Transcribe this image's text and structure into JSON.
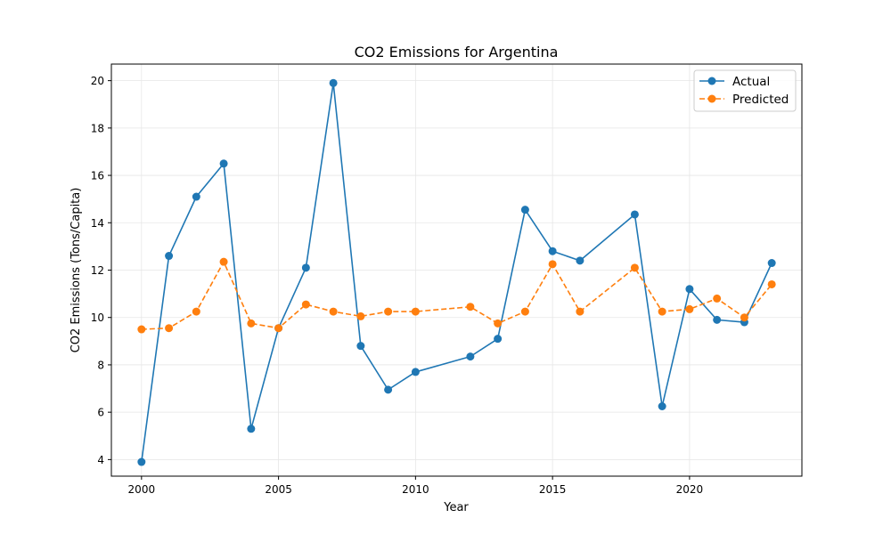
{
  "chart_data": {
    "type": "line",
    "title": "CO2 Emissions for Argentina",
    "xlabel": "Year",
    "ylabel": "CO2 Emissions (Tons/Capita)",
    "xlim": [
      1998.9,
      2024.1
    ],
    "ylim": [
      3.3,
      20.7
    ],
    "xticks": [
      2000,
      2005,
      2010,
      2015,
      2020
    ],
    "yticks": [
      4,
      6,
      8,
      10,
      12,
      14,
      16,
      18,
      20
    ],
    "grid": true,
    "legend_position": "top-right",
    "series": [
      {
        "name": "Actual",
        "color": "#1f77b4",
        "line_style": "solid",
        "marker": "circle",
        "points": [
          [
            2000,
            3.9
          ],
          [
            2001,
            12.6
          ],
          [
            2002,
            15.1
          ],
          [
            2003,
            16.5
          ],
          [
            2004,
            5.3
          ],
          [
            2005,
            9.55
          ],
          [
            2006,
            12.1
          ],
          [
            2007,
            19.9
          ],
          [
            2008,
            8.8
          ],
          [
            2009,
            6.95
          ],
          [
            2010,
            7.7
          ],
          [
            2012,
            8.35
          ],
          [
            2013,
            9.1
          ],
          [
            2014,
            14.55
          ],
          [
            2015,
            12.8
          ],
          [
            2016,
            12.4
          ],
          [
            2018,
            14.35
          ],
          [
            2019,
            6.25
          ],
          [
            2020,
            11.2
          ],
          [
            2021,
            9.9
          ],
          [
            2022,
            9.8
          ],
          [
            2023,
            12.3
          ]
        ]
      },
      {
        "name": "Predicted",
        "color": "#ff7f0e",
        "line_style": "dashed",
        "marker": "circle",
        "points": [
          [
            2000,
            9.5
          ],
          [
            2001,
            9.55
          ],
          [
            2002,
            10.25
          ],
          [
            2003,
            12.35
          ],
          [
            2004,
            9.75
          ],
          [
            2005,
            9.55
          ],
          [
            2006,
            10.55
          ],
          [
            2007,
            10.25
          ],
          [
            2008,
            10.05
          ],
          [
            2009,
            10.25
          ],
          [
            2010,
            10.25
          ],
          [
            2012,
            10.45
          ],
          [
            2013,
            9.75
          ],
          [
            2014,
            10.25
          ],
          [
            2015,
            12.25
          ],
          [
            2016,
            10.25
          ],
          [
            2018,
            12.1
          ],
          [
            2019,
            10.25
          ],
          [
            2020,
            10.35
          ],
          [
            2021,
            10.8
          ],
          [
            2022,
            10.0
          ],
          [
            2023,
            11.4
          ]
        ]
      }
    ]
  }
}
